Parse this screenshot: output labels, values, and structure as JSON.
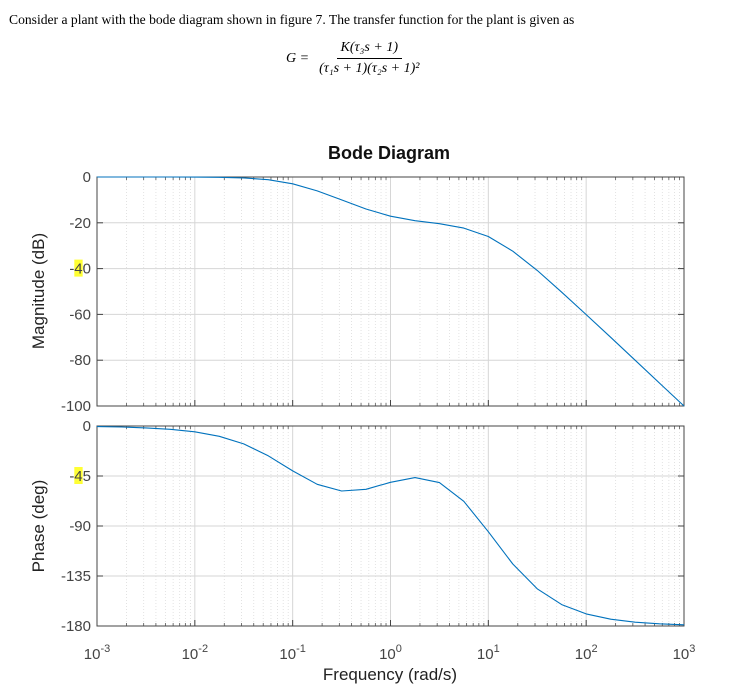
{
  "document": {
    "intro_text": "Consider a plant with the bode diagram shown in figure 7. The transfer function for the plant is given as",
    "equation": {
      "lhs": "G =",
      "numerator": "K(τ₃s + 1)",
      "denominator": "(τ₁s + 1)(τ₂s + 1)²"
    }
  },
  "highlight_color": "#ffff33",
  "line_color": "#0072bd",
  "chart_data": [
    {
      "type": "line",
      "title": "Bode Diagram",
      "ylabel": "Magnitude (dB)",
      "xscale": "log",
      "xlim": [
        0.001,
        1000
      ],
      "ylim": [
        -100,
        0
      ],
      "grid": true,
      "yticks": [
        0,
        -20,
        -40,
        -60,
        -80,
        -100
      ],
      "ytick_labels": [
        "0",
        "-20",
        "-40",
        "-60",
        "-80",
        "-100"
      ],
      "highlighted_tick": {
        "label": "-40",
        "char_index": 1
      },
      "x": [
        0.001,
        0.00178,
        0.00316,
        0.00562,
        0.01,
        0.0178,
        0.0316,
        0.0562,
        0.1,
        0.178,
        0.316,
        0.562,
        1,
        1.78,
        3.16,
        5.62,
        10,
        17.8,
        31.6,
        56.2,
        100,
        178,
        316,
        562,
        1000
      ],
      "y": [
        0,
        0,
        -0.004,
        -0.014,
        -0.043,
        -0.13,
        -0.41,
        -1.18,
        -2.97,
        -6.06,
        -10.0,
        -13.97,
        -17.1,
        -19.1,
        -20.4,
        -22.3,
        -26.0,
        -32.4,
        -40.8,
        -50.3,
        -60.1,
        -70.0,
        -80.0,
        -90.0,
        -100.0
      ]
    },
    {
      "type": "line",
      "xlabel": "Frequency  (rad/s)",
      "ylabel": "Phase (deg)",
      "xscale": "log",
      "xlim": [
        0.001,
        1000
      ],
      "ylim": [
        -180,
        0
      ],
      "grid": true,
      "yticks": [
        0,
        -45,
        -90,
        -135,
        -180
      ],
      "ytick_labels": [
        "0",
        "-45",
        "-90",
        "-135",
        "-180"
      ],
      "highlighted_tick": {
        "label": "-45",
        "char_index": 1
      },
      "xtick_base": "10",
      "xtick_exponents": [
        "-3",
        "-2",
        "-1",
        "0",
        "1",
        "2",
        "3"
      ],
      "x": [
        0.001,
        0.00178,
        0.00316,
        0.00562,
        0.01,
        0.0178,
        0.0316,
        0.0562,
        0.1,
        0.178,
        0.316,
        0.562,
        1,
        1.78,
        3.16,
        5.62,
        10,
        17.8,
        31.6,
        56.2,
        100,
        178,
        316,
        562,
        1000
      ],
      "y": [
        -0.53,
        -0.94,
        -1.67,
        -2.96,
        -5.25,
        -9.3,
        -16.1,
        -26.8,
        -40.4,
        -52.5,
        -58.5,
        -57.0,
        -50.7,
        -46.4,
        -50.9,
        -67.8,
        -95.1,
        -124.2,
        -146.5,
        -160.7,
        -169.1,
        -173.9,
        -176.6,
        -178.0,
        -178.9
      ]
    }
  ]
}
